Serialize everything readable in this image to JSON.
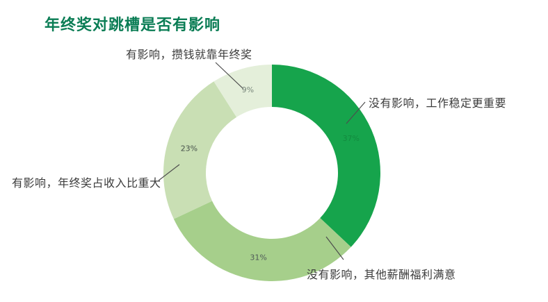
{
  "title": {
    "text": "年终奖对跳槽是否有影响",
    "color": "#0b7d55"
  },
  "chart_data": {
    "type": "pie",
    "subtype": "donut",
    "title": "年终奖对跳槽是否有影响",
    "start_angle_deg": 0,
    "direction": "clockwise",
    "legend_position": "none",
    "callout_lines": true,
    "slices": [
      {
        "label": "没有影响，工作稳定更重要",
        "value": 37,
        "pct_label": "37%",
        "color": "#16a44c",
        "pct_color": "#128a3e"
      },
      {
        "label": "没有影响，其他薪酬福利满意",
        "value": 31,
        "pct_label": "31%",
        "color": "#a6cf8b",
        "pct_color": "#4f5a58"
      },
      {
        "label": "有影响，年终奖占收入比重大",
        "value": 23,
        "pct_label": "23%",
        "color": "#c9dfb4",
        "pct_color": "#46514a"
      },
      {
        "label": "有影响，攒钱就靠年终奖",
        "value": 9,
        "pct_label": "9%",
        "color": "#e4efda",
        "pct_color": "#79877c"
      }
    ]
  }
}
